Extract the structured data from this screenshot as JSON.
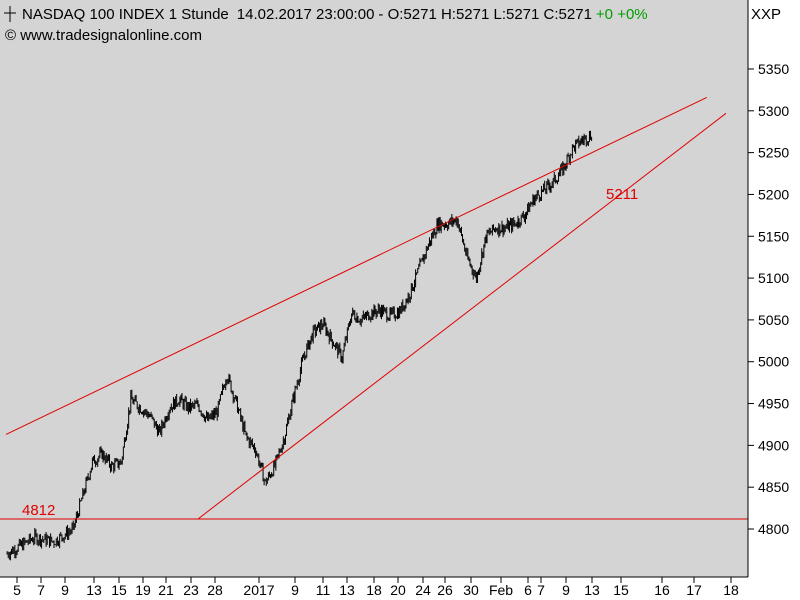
{
  "header": {
    "title": "NASDAQ 100 INDEX 1 Stunde",
    "timestamp": "14.02.2017 23:00:00",
    "ohlc": "- O:5271 H:5271 L:5271 C:5271",
    "change": "+0 +0%",
    "watermark": "© www.tradesignalonline.com",
    "symbol": "XXP"
  },
  "colors": {
    "plot_background": "#d4d4d4",
    "bars": "#000000",
    "trendlines": "#e00000",
    "change_text": "#00a000"
  },
  "chart_data": {
    "type": "ohlc-bar",
    "title": "NASDAQ 100 INDEX 1 Stunde",
    "xlabel": "",
    "ylabel": "",
    "ylim": [
      4760,
      5400
    ],
    "grid": false,
    "y_ticks": [
      4800,
      4850,
      4900,
      4950,
      5000,
      5050,
      5100,
      5150,
      5200,
      5250,
      5300,
      5350
    ],
    "x_tick_labels": [
      "5",
      "7",
      "9",
      "13",
      "15",
      "19",
      "21",
      "23",
      "28",
      "2017",
      "9",
      "11",
      "13",
      "18",
      "20",
      "24",
      "26",
      "30",
      "Feb",
      "6",
      "7",
      "9",
      "13",
      "15",
      "16",
      "17",
      "18"
    ],
    "price_path": [
      [
        0,
        4770
      ],
      [
        3,
        4790
      ],
      [
        5,
        4785
      ],
      [
        7,
        4800
      ],
      [
        8,
        4840
      ],
      [
        9,
        4880
      ],
      [
        10,
        4890
      ],
      [
        11,
        4875
      ],
      [
        12,
        4880
      ],
      [
        13,
        4955
      ],
      [
        14,
        4945
      ],
      [
        15,
        4935
      ],
      [
        16,
        4915
      ],
      [
        17,
        4945
      ],
      [
        18,
        4955
      ],
      [
        19,
        4945
      ],
      [
        20,
        4948
      ],
      [
        21,
        4930
      ],
      [
        22,
        4940
      ],
      [
        23,
        4985
      ],
      [
        24,
        4950
      ],
      [
        25,
        4910
      ],
      [
        26,
        4895
      ],
      [
        27,
        4855
      ],
      [
        28,
        4875
      ],
      [
        29,
        4910
      ],
      [
        30,
        4960
      ],
      [
        31,
        5005
      ],
      [
        32,
        5035
      ],
      [
        33,
        5045
      ],
      [
        34,
        5025
      ],
      [
        35,
        5005
      ],
      [
        36,
        5058
      ],
      [
        37,
        5050
      ],
      [
        38,
        5058
      ],
      [
        39,
        5062
      ],
      [
        40,
        5055
      ],
      [
        41,
        5060
      ],
      [
        42,
        5080
      ],
      [
        43,
        5110
      ],
      [
        44,
        5140
      ],
      [
        45,
        5165
      ],
      [
        46,
        5165
      ],
      [
        47,
        5170
      ],
      [
        48,
        5125
      ],
      [
        49,
        5100
      ],
      [
        50,
        5150
      ],
      [
        51,
        5160
      ],
      [
        52,
        5160
      ],
      [
        53,
        5165
      ],
      [
        54,
        5175
      ],
      [
        55,
        5195
      ],
      [
        56,
        5205
      ],
      [
        57,
        5215
      ],
      [
        58,
        5230
      ],
      [
        59,
        5255
      ],
      [
        60,
        5265
      ],
      [
        61,
        5271
      ]
    ],
    "resistance_line": {
      "start": [
        0,
        4913
      ],
      "end": [
        73,
        5316
      ],
      "color": "#e00000"
    },
    "support_line": {
      "start": [
        20,
        4812
      ],
      "end": [
        75,
        5297
      ],
      "color": "#e00000"
    },
    "horizontal_level": {
      "value": 4812,
      "label": "4812",
      "color": "#e00000"
    },
    "support_level_label": "5211"
  }
}
